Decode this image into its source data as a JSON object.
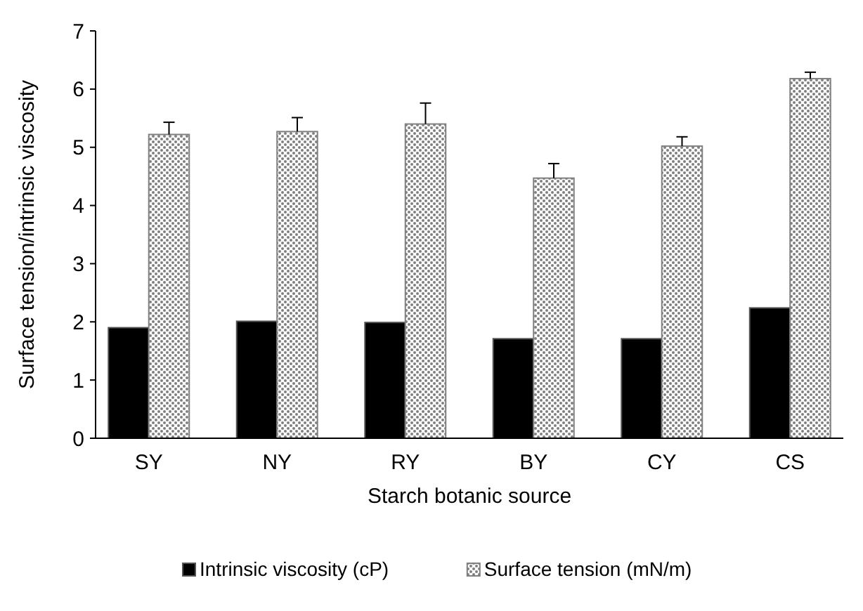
{
  "chart_data": {
    "type": "bar",
    "xlabel": "Starch botanic source",
    "ylabel": "Surface tension/intrinsic viscosity",
    "categories": [
      "SY",
      "NY",
      "RY",
      "BY",
      "CY",
      "CS"
    ],
    "series": [
      {
        "name": "Intrinsic viscosity (cP)",
        "color": "#000000",
        "values": [
          1.9,
          2.01,
          1.99,
          1.71,
          1.71,
          2.24
        ]
      },
      {
        "name": "Surface tension (mN/m)",
        "color": "#808080",
        "values": [
          5.22,
          5.27,
          5.4,
          4.47,
          5.02,
          6.18
        ],
        "errors": [
          0.21,
          0.24,
          0.36,
          0.25,
          0.16,
          0.11
        ]
      }
    ],
    "ylim": [
      0,
      7
    ],
    "yticks": [
      0,
      1,
      2,
      3,
      4,
      5,
      6,
      7
    ],
    "grid": false,
    "legend": "bottom"
  }
}
